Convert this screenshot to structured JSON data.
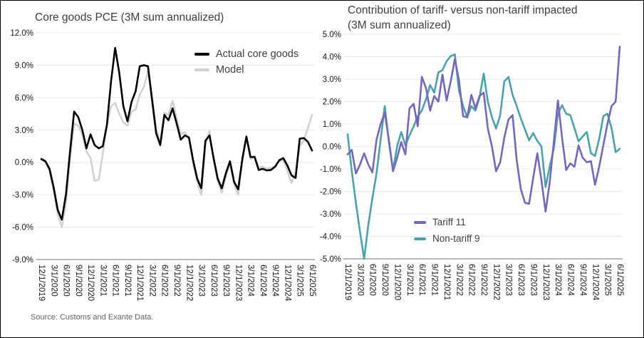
{
  "source_note": "Source: Customs and Exante Data.",
  "colors": {
    "grid": "#e8e8e8",
    "axis": "#8c8c8c",
    "title": "#3c4043",
    "tick_label": "#161616",
    "source": "#5f6368",
    "actual": "#000000",
    "model": "#d1d1d1",
    "tariff": "#7468bd",
    "nontariff": "#4aa2ad"
  },
  "x_tick_labels": [
    "12/1/2019",
    "3/1/2020",
    "6/1/2020",
    "9/1/2020",
    "12/1/2020",
    "3/1/2021",
    "6/1/2021",
    "9/1/2021",
    "12/1/2021",
    "3/1/2022",
    "6/1/2022",
    "9/1/2022",
    "12/1/2022",
    "3/1/2023",
    "6/1/2023",
    "9/1/2023",
    "12/1/2023",
    "3/1/2024",
    "6/1/2024",
    "9/1/2024",
    "12/1/2024",
    "3/1/2025",
    "6/1/2025"
  ],
  "chart_data": [
    {
      "type": "line",
      "title": "Core goods PCE (3M sum annualized)",
      "title_lines": [
        "Core goods PCE (3M sum annualized)"
      ],
      "xlabel": "",
      "ylabel": "",
      "ylim": [
        -9,
        12
      ],
      "y_ticks": [
        "12.0%",
        "9.0%",
        "6.0%",
        "3.0%",
        "0.0%",
        "-3.0%",
        "-6.0%",
        "-9.0%"
      ],
      "x_start": "12/1/2019",
      "x_end": "6/1/2025",
      "x_frequency": "monthly",
      "grid": "horizontal",
      "legend_position": "inside-top-right",
      "series": [
        {
          "name": "Actual core goods",
          "color": "#000000",
          "values": [
            0.3,
            0.1,
            -0.6,
            -2.3,
            -4.4,
            -5.3,
            -3.0,
            1.0,
            4.7,
            4.2,
            3.0,
            1.3,
            2.6,
            1.6,
            1.3,
            1.5,
            3.5,
            7.5,
            10.6,
            8.3,
            5.2,
            3.8,
            5.6,
            6.6,
            8.9,
            9.0,
            8.9,
            5.8,
            2.7,
            1.6,
            4.4,
            3.9,
            5.0,
            3.6,
            2.1,
            2.5,
            2.3,
            0.2,
            -1.5,
            -2.4,
            2.0,
            2.5,
            0.4,
            -1.5,
            -2.4,
            -1.0,
            0.1,
            -1.8,
            -2.5,
            0.3,
            2.4,
            0.5,
            0.5,
            -0.7,
            -0.6,
            -0.75,
            -0.7,
            -0.4,
            0.2,
            0.4,
            -0.3,
            -1.2,
            -1.45,
            2.2,
            2.25,
            1.9,
            1.1
          ]
        },
        {
          "name": "Model",
          "color": "#d1d1d1",
          "values": [
            0.4,
            0.1,
            -0.8,
            -2.6,
            -4.8,
            -6.0,
            -3.8,
            0.3,
            3.6,
            3.4,
            2.6,
            1.0,
            0.4,
            -1.7,
            -1.6,
            0.8,
            3.4,
            5.2,
            5.5,
            4.5,
            3.7,
            3.4,
            4.7,
            4.9,
            6.3,
            7.0,
            8.4,
            6.1,
            3.1,
            1.9,
            4.6,
            4.4,
            5.7,
            4.1,
            2.6,
            2.8,
            2.2,
            0.0,
            -1.8,
            -3.0,
            1.6,
            2.9,
            0.3,
            -1.8,
            -2.8,
            -1.3,
            -0.1,
            -2.0,
            -3.0,
            0.1,
            2.2,
            0.3,
            0.6,
            -0.5,
            -0.4,
            -0.6,
            -0.5,
            -0.3,
            0.1,
            0.2,
            -0.8,
            -1.9,
            -0.9,
            1.5,
            2.0,
            3.2,
            4.4
          ]
        }
      ]
    },
    {
      "type": "line",
      "title": "Contribution of tariff- versus non-tariff impacted (3M sum annualized)",
      "title_lines": [
        "Contribution of tariff- versus non-tariff impacted",
        "(3M sum annualized)"
      ],
      "xlabel": "",
      "ylabel": "",
      "ylim": [
        -5,
        5
      ],
      "y_ticks": [
        "5.0%",
        "4.0%",
        "3.0%",
        "2.0%",
        "1.0%",
        "0.0%",
        "-1.0%",
        "-2.0%",
        "-3.0%",
        "-4.0%",
        "-5.0%"
      ],
      "x_start": "12/1/2019",
      "x_end": "6/1/2025",
      "x_frequency": "monthly",
      "grid": "horizontal",
      "legend_position": "inside-bottom-center",
      "series": [
        {
          "name": "Tariff 11",
          "color": "#7468bd",
          "values": [
            -0.35,
            -0.15,
            -1.2,
            -0.8,
            -0.3,
            -0.8,
            -1.15,
            0.3,
            1.0,
            1.5,
            0.3,
            -1.1,
            -0.5,
            0.2,
            -0.35,
            1.7,
            1.9,
            0.9,
            3.1,
            2.6,
            1.6,
            2.25,
            2.0,
            3.2,
            2.05,
            2.9,
            3.9,
            2.95,
            1.35,
            1.3,
            2.3,
            1.7,
            2.25,
            2.4,
            0.8,
            0.0,
            -1.1,
            -0.7,
            0.4,
            1.2,
            1.4,
            -0.6,
            -1.9,
            -2.5,
            -2.55,
            -1.4,
            -0.3,
            -1.5,
            -2.9,
            -1.6,
            0.2,
            2.05,
            0.4,
            -1.05,
            -0.75,
            -0.9,
            0.05,
            -0.5,
            -0.7,
            -0.65,
            -1.7,
            -0.9,
            0.05,
            1.0,
            1.8,
            2.0,
            4.45
          ]
        },
        {
          "name": "Non-tariff 9",
          "color": "#4aa2ad",
          "values": [
            0.55,
            -1.1,
            -2.5,
            -3.8,
            -5.0,
            -3.5,
            -2.3,
            -1.2,
            0.3,
            1.8,
            0.2,
            -1.05,
            0.0,
            0.65,
            0.05,
            0.5,
            0.9,
            1.35,
            1.6,
            2.1,
            2.74,
            2.4,
            3.3,
            3.4,
            3.8,
            4.03,
            4.1,
            2.5,
            1.8,
            1.3,
            1.8,
            1.6,
            2.2,
            3.25,
            2.0,
            1.3,
            0.8,
            1.4,
            2.9,
            3.1,
            2.3,
            1.8,
            1.25,
            0.76,
            0.28,
            0.6,
            0.25,
            0.0,
            -1.8,
            -0.9,
            -0.1,
            1.46,
            1.84,
            1.46,
            1.4,
            0.82,
            0.23,
            0.45,
            0.65,
            -0.3,
            -0.42,
            0.33,
            1.35,
            1.46,
            0.82,
            -0.25,
            -0.1
          ]
        }
      ]
    }
  ]
}
